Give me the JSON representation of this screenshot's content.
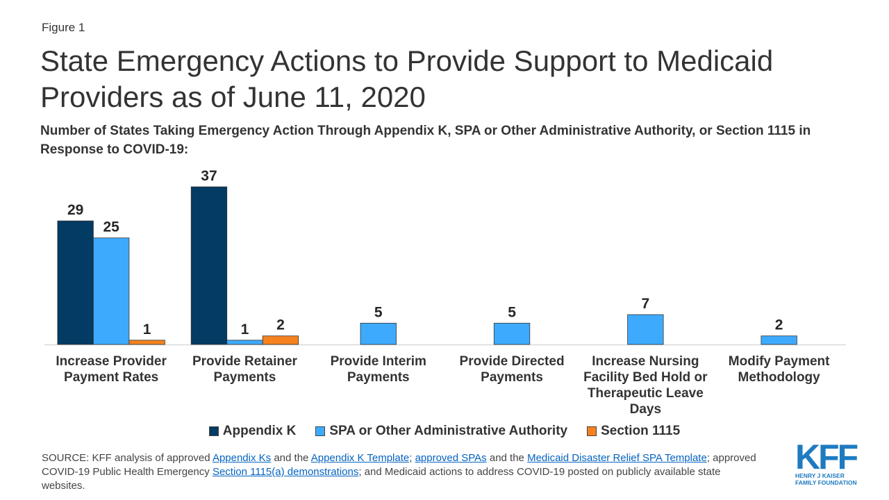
{
  "figure_label": "Figure 1",
  "chart_data": {
    "type": "bar",
    "title": "State Emergency Actions to Provide Support to Medicaid Providers as of June 11, 2020",
    "subtitle": "Number of States Taking Emergency Action Through Appendix K, SPA or Other Administrative Authority, or Section 1115 in Response to COVID-19:",
    "categories": [
      "Increase Provider Payment Rates",
      "Provide Retainer Payments",
      "Provide Interim Payments",
      "Provide Directed Payments",
      "Increase Nursing Facility Bed Hold or Therapeutic Leave Days",
      "Modify Payment Methodology"
    ],
    "series": [
      {
        "name": "Appendix K",
        "color": "#023b63",
        "values": [
          29,
          37,
          null,
          null,
          null,
          null
        ]
      },
      {
        "name": "SPA or Other Administrative Authority",
        "color": "#3eaafd",
        "values": [
          25,
          1,
          5,
          5,
          7,
          2
        ]
      },
      {
        "name": "Section 1115",
        "color": "#f5821f",
        "values": [
          1,
          2,
          null,
          null,
          null,
          null
        ]
      }
    ],
    "ylim": [
      0,
      37
    ],
    "grid": false,
    "legend": "bottom"
  },
  "source": {
    "parts": [
      {
        "text": "SOURCE: KFF analysis of approved "
      },
      {
        "text": "Appendix Ks",
        "link": true
      },
      {
        "text": " and the "
      },
      {
        "text": "Appendix K Template",
        "link": true
      },
      {
        "text": "; "
      },
      {
        "text": "approved SPAs",
        "link": true
      },
      {
        "text": " and the "
      },
      {
        "text": "Medicaid Disaster Relief SPA Template",
        "link": true
      },
      {
        "text": "; approved COVID-19 Public Health Emergency "
      },
      {
        "text": "Section 1115(a) demonstrations",
        "link": true
      },
      {
        "text": "; and Medicaid actions to address COVID-19 posted on publicly available state websites."
      }
    ]
  },
  "logo": {
    "mark": "KFF",
    "line1": "HENRY J KAISER",
    "line2": "FAMILY FOUNDATION"
  }
}
